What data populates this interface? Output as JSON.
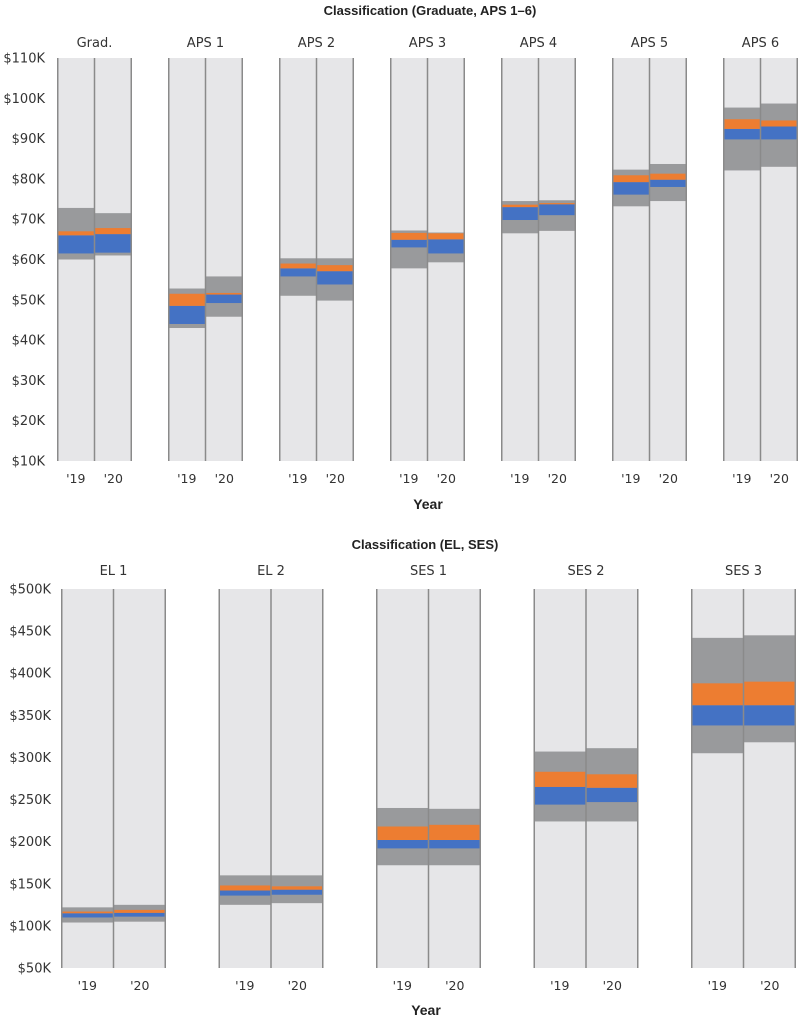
{
  "colors": {
    "column_bg": "#e6e6e8",
    "outer_band": "#999a9c",
    "q_low": "#4472c4",
    "q_high": "#ed7d31",
    "divider": "#8a8a8a"
  },
  "chart_data": [
    {
      "type": "box",
      "title": "Classification (Graduate, APS 1–6)",
      "xlabel": "Year",
      "ylabel": "",
      "ylim": [
        10000,
        110000
      ],
      "yticks": [
        10000,
        20000,
        30000,
        40000,
        50000,
        60000,
        70000,
        80000,
        90000,
        100000,
        110000
      ],
      "ytick_labels": [
        "$10K",
        "$20K",
        "$30K",
        "$40K",
        "$50K",
        "$60K",
        "$70K",
        "$80K",
        "$90K",
        "$100K",
        "$110K"
      ],
      "year_labels": [
        "'19",
        "'20"
      ],
      "groups": [
        {
          "name": "Grad.",
          "bars": [
            {
              "year": "'19",
              "p5": 60000,
              "p25": 61500,
              "median": 66000,
              "p75": 67000,
              "p95": 72800
            },
            {
              "year": "'20",
              "p5": 61000,
              "p25": 61700,
              "median": 66300,
              "p75": 67800,
              "p95": 71500
            }
          ]
        },
        {
          "name": "APS 1",
          "bars": [
            {
              "year": "'19",
              "p5": 43000,
              "p25": 44000,
              "median": 48500,
              "p75": 51500,
              "p95": 52800
            },
            {
              "year": "'20",
              "p5": 45800,
              "p25": 49200,
              "median": 51300,
              "p75": 51700,
              "p95": 55800
            }
          ]
        },
        {
          "name": "APS 2",
          "bars": [
            {
              "year": "'19",
              "p5": 51000,
              "p25": 55800,
              "median": 57800,
              "p75": 59000,
              "p95": 60300
            },
            {
              "year": "'20",
              "p5": 49800,
              "p25": 53800,
              "median": 57100,
              "p75": 58600,
              "p95": 60300
            }
          ]
        },
        {
          "name": "APS 3",
          "bars": [
            {
              "year": "'19",
              "p5": 57800,
              "p25": 63000,
              "median": 64900,
              "p75": 66600,
              "p95": 67200
            },
            {
              "year": "'20",
              "p5": 59300,
              "p25": 61500,
              "median": 65000,
              "p75": 66500,
              "p95": 66700
            }
          ]
        },
        {
          "name": "APS 4",
          "bars": [
            {
              "year": "'19",
              "p5": 66500,
              "p25": 69800,
              "median": 73000,
              "p75": 73600,
              "p95": 74500
            },
            {
              "year": "'20",
              "p5": 67100,
              "p25": 71000,
              "median": 73700,
              "p75": 74000,
              "p95": 74700
            }
          ]
        },
        {
          "name": "APS 5",
          "bars": [
            {
              "year": "'19",
              "p5": 73200,
              "p25": 76100,
              "median": 79200,
              "p75": 80900,
              "p95": 82300
            },
            {
              "year": "'20",
              "p5": 74500,
              "p25": 78000,
              "median": 79800,
              "p75": 81300,
              "p95": 83700
            }
          ]
        },
        {
          "name": "APS 6",
          "bars": [
            {
              "year": "'19",
              "p5": 82100,
              "p25": 89800,
              "median": 92400,
              "p75": 94800,
              "p95": 97700
            },
            {
              "year": "'20",
              "p5": 83000,
              "p25": 89800,
              "median": 93000,
              "p75": 94500,
              "p95": 98700
            }
          ]
        }
      ]
    },
    {
      "type": "box",
      "title": "Classification (EL, SES)",
      "xlabel": "Year",
      "ylabel": "",
      "ylim": [
        50000,
        500000
      ],
      "yticks": [
        50000,
        100000,
        150000,
        200000,
        250000,
        300000,
        350000,
        400000,
        450000,
        500000
      ],
      "ytick_labels": [
        "$50K",
        "$100K",
        "$150K",
        "$200K",
        "$250K",
        "$300K",
        "$350K",
        "$400K",
        "$450K",
        "$500K"
      ],
      "year_labels": [
        "'19",
        "'20"
      ],
      "groups": [
        {
          "name": "EL 1",
          "bars": [
            {
              "year": "'19",
              "p5": 104000,
              "p25": 110000,
              "median": 115000,
              "p75": 117000,
              "p95": 122000
            },
            {
              "year": "'20",
              "p5": 105000,
              "p25": 111000,
              "median": 115500,
              "p75": 119000,
              "p95": 125000
            }
          ]
        },
        {
          "name": "EL 2",
          "bars": [
            {
              "year": "'19",
              "p5": 125000,
              "p25": 136000,
              "median": 142000,
              "p75": 148000,
              "p95": 160000
            },
            {
              "year": "'20",
              "p5": 127000,
              "p25": 137000,
              "median": 143000,
              "p75": 147000,
              "p95": 160000
            }
          ]
        },
        {
          "name": "SES 1",
          "bars": [
            {
              "year": "'19",
              "p5": 172000,
              "p25": 192000,
              "median": 202000,
              "p75": 218000,
              "p95": 240000
            },
            {
              "year": "'20",
              "p5": 172000,
              "p25": 192000,
              "median": 202000,
              "p75": 220000,
              "p95": 239000
            }
          ]
        },
        {
          "name": "SES 2",
          "bars": [
            {
              "year": "'19",
              "p5": 224000,
              "p25": 244000,
              "median": 265000,
              "p75": 283000,
              "p95": 307000
            },
            {
              "year": "'20",
              "p5": 224000,
              "p25": 247000,
              "median": 264000,
              "p75": 280000,
              "p95": 311000
            }
          ]
        },
        {
          "name": "SES 3",
          "bars": [
            {
              "year": "'19",
              "p5": 305000,
              "p25": 338000,
              "median": 362000,
              "p75": 388000,
              "p95": 442000
            },
            {
              "year": "'20",
              "p5": 318000,
              "p25": 338000,
              "median": 362000,
              "p75": 390000,
              "p95": 445000
            }
          ]
        }
      ]
    }
  ]
}
